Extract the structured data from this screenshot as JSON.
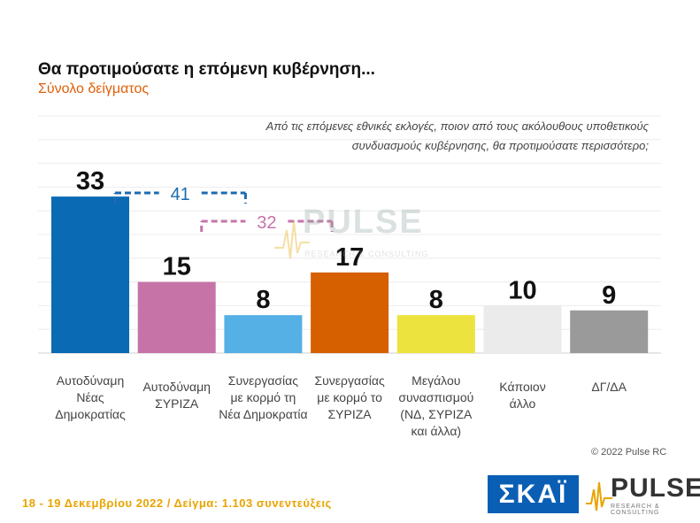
{
  "title": "Θα προτιμούσατε η επόμενη κυβέρνηση...",
  "subtitle": "Σύνολο δείγματος",
  "question_line1": "Από τις επόμενες εθνικές εκλογές, ποιον από τους ακόλουθους υποθετικούς",
  "question_line2": "συνδυασμούς κυβέρνησης, θα προτιμούσατε περισσότερο;",
  "copyright": "© 2022 Pulse RC",
  "footer": "18 - 19 Δεκεμβρίου 2022 / Δείγμα: 1.103 συνεντεύξεις",
  "logos": {
    "skai": "ΣΚΑΪ",
    "pulse": "PULSE",
    "pulse_sub": "RESEARCH & CONSULTING",
    "watermark": "PULSE",
    "watermark_sub": "RESEARCH & CONSULTING"
  },
  "chart_data": {
    "type": "bar",
    "categories": [
      [
        "Αυτοδύναμη",
        "Νέας",
        "Δημοκρατίας"
      ],
      [
        "Αυτοδύναμη",
        "ΣΥΡΙΖΑ"
      ],
      [
        "Συνεργασίας",
        "με κορμό τη",
        "Νέα Δημοκρατία"
      ],
      [
        "Συνεργασίας",
        "με κορμό το",
        "ΣΥΡΙΖΑ"
      ],
      [
        "Μεγάλου",
        "συνασπισμού",
        "(ΝΔ, ΣΥΡΙΖΑ",
        "και άλλα)"
      ],
      [
        "Κάποιον",
        "άλλο"
      ],
      [
        "ΔΓ/ΔΑ"
      ]
    ],
    "values": [
      33,
      15,
      8,
      17,
      8,
      10,
      9
    ],
    "colors": [
      "#0a6ab4",
      "#c674a8",
      "#55b0e6",
      "#d65f00",
      "#ede33e",
      "#ebebeb",
      "#9a9a9a"
    ],
    "ylim": [
      0,
      50
    ],
    "grid": true,
    "brackets": [
      {
        "label": "41",
        "from": 0,
        "to": 2,
        "color": "#1c6bb0"
      },
      {
        "label": "32",
        "from": 1,
        "to": 3,
        "color": "#c674a8"
      }
    ]
  }
}
